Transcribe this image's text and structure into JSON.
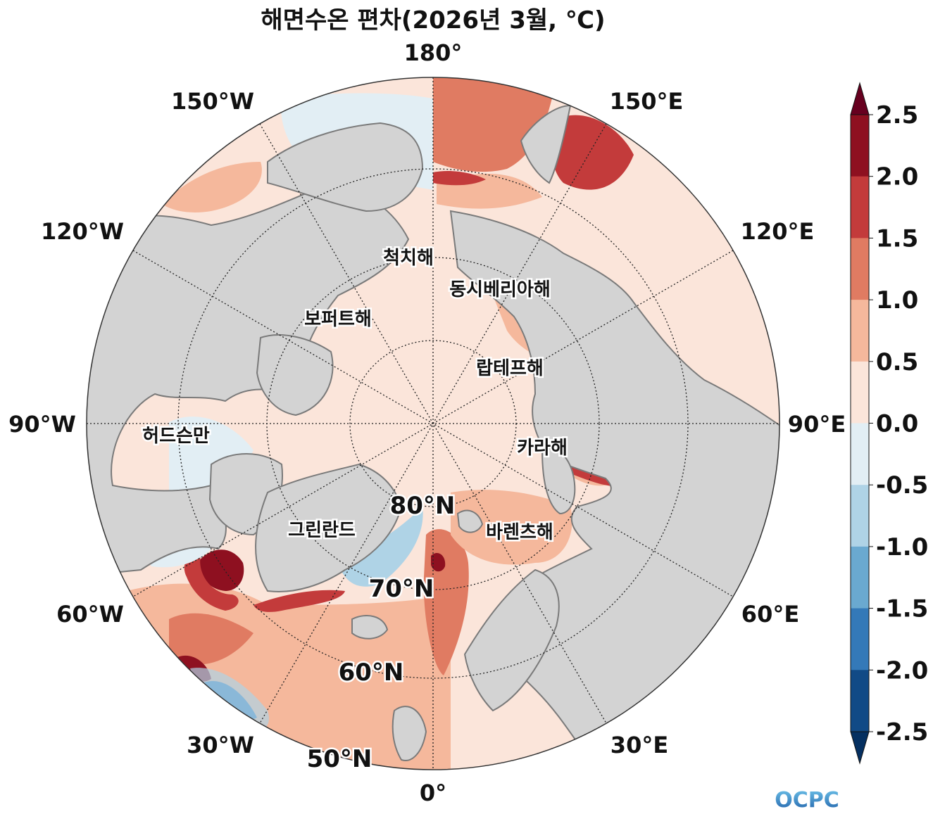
{
  "title": "해면수온 편차(2026년 3월, ℃)",
  "longitude_labels": {
    "lon_180": "180°",
    "lon_150e": "150°E",
    "lon_120e": "120°E",
    "lon_90e": "90°E",
    "lon_60e": "60°E",
    "lon_30e": "30°E",
    "lon_0": "0°",
    "lon_30w": "30°W",
    "lon_60w": "60°W",
    "lon_90w": "90°W",
    "lon_120w": "120°W",
    "lon_150w": "150°W"
  },
  "latitude_labels": {
    "lat_80": "80°N",
    "lat_70": "70°N",
    "lat_60": "60°N",
    "lat_50": "50°N"
  },
  "sea_labels": {
    "chukchi": "척치해",
    "east_siberian": "동시베리아해",
    "beaufort": "보퍼트해",
    "laptev": "랍테프해",
    "hudson": "허드슨만",
    "kara": "카라해",
    "greenland": "그린란드",
    "barents": "바렌츠해"
  },
  "colorbar": {
    "ticks": [
      "2.5",
      "2.0",
      "1.5",
      "1.0",
      "0.5",
      "0.0",
      "-0.5",
      "-1.0",
      "-1.5",
      "-2.0",
      "-2.5"
    ],
    "bands": [
      "#67001f",
      "#b2182b",
      "#d6604d",
      "#f4a582",
      "#fddbc7",
      "#e1edf3",
      "#92c5de",
      "#4393c3",
      "#2166ac",
      "#053061"
    ],
    "colors": {
      "extend_high": "#67001f",
      "extend_low": "#053061",
      "band_2.0_2.5": "#8e1020",
      "band_1.5_2.0": "#c33b3b",
      "band_1.0_1.5": "#e07b62",
      "band_0.5_1.0": "#f5b89c",
      "band_0.0_0.5": "#fbe5da",
      "band_-0.5_0.0": "#e2eef4",
      "band_-1.0_-0.5": "#afd3e6",
      "band_-1.5_-1.0": "#6aa9d0",
      "band_-2.0_-1.5": "#3479b8",
      "band_-2.5_-2.0": "#114a86"
    }
  },
  "land_color": "#d3d3d3",
  "coastline_color": "#7a7a7a",
  "logo": {
    "text": "OCPC"
  }
}
